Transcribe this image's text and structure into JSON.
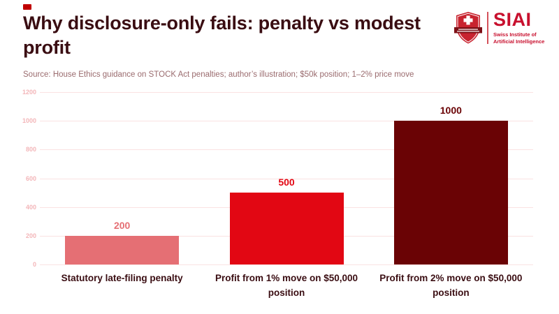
{
  "header": {
    "title": "Why disclosure-only fails: penalty vs modest profit",
    "source": "Source: House Ethics guidance on STOCK Act penalties; author’s illustration; $50k position; 1–2% price move"
  },
  "logo": {
    "abbr": "SIAI",
    "subtitle_line1": "Swiss Institute of",
    "subtitle_line2": "Artificial Intelligence",
    "brand_color": "#c8102e"
  },
  "accent": {
    "top_left_dash_color": "#c00000"
  },
  "colors": {
    "title_text": "#3a0d12",
    "source_text": "#9a6b6e",
    "axis_tick_text": "#f3b6b9",
    "gridline": "#fae2e2",
    "background": "#ffffff"
  },
  "chart_data": {
    "type": "bar",
    "title": "",
    "categories": [
      "Statutory late-filing penalty",
      "Profit from 1% move on $50,000 position",
      "Profit from 2% move on $50,000 position"
    ],
    "values": [
      200,
      500,
      1000
    ],
    "value_labels": [
      "200",
      "500",
      "1000"
    ],
    "bar_colors": [
      "#e56f74",
      "#e20713",
      "#6a0305"
    ],
    "xlabel": "",
    "ylabel": "",
    "ylim": [
      0,
      1200
    ],
    "yticks": [
      0,
      200,
      400,
      600,
      800,
      1000,
      1200
    ],
    "grid": true,
    "legend": false
  }
}
